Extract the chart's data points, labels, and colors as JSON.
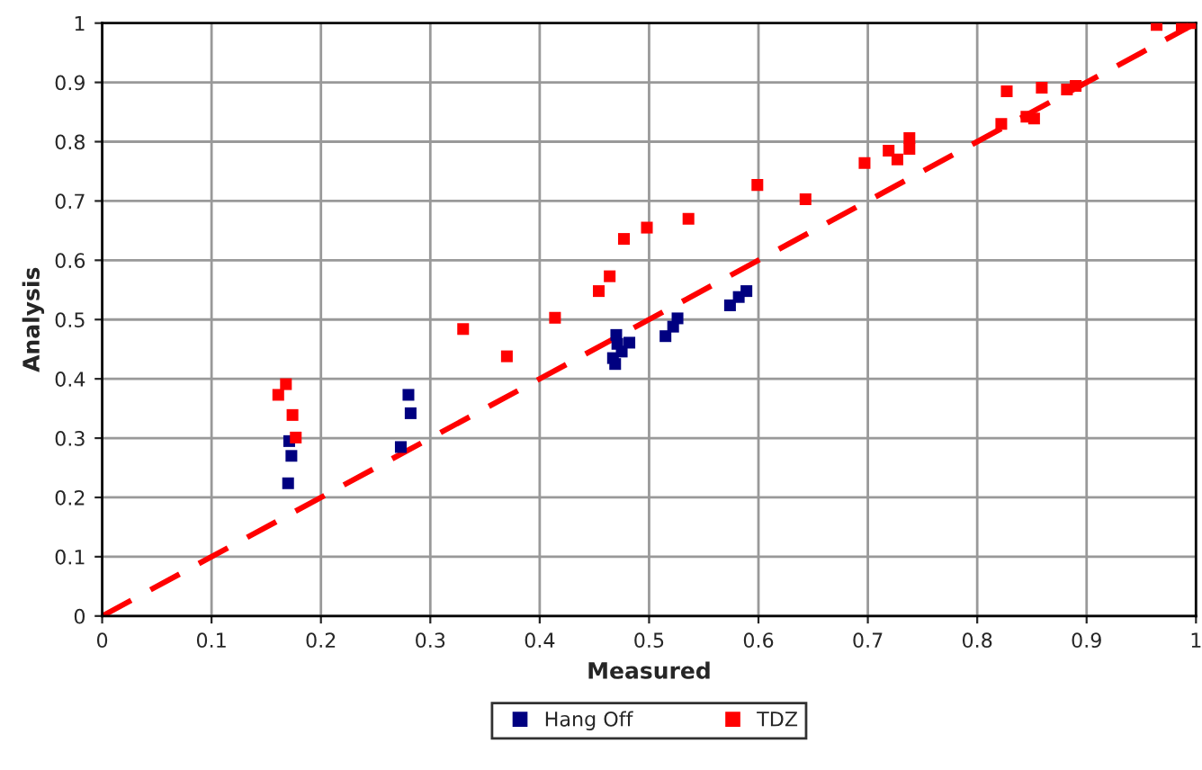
{
  "chart_data": {
    "type": "scatter",
    "xlabel": "Measured",
    "ylabel": "Analysis",
    "xlim": [
      0,
      1
    ],
    "ylim": [
      0,
      1
    ],
    "xticks": [
      0,
      0.1,
      0.2,
      0.3,
      0.4,
      0.5,
      0.6,
      0.7,
      0.8,
      0.9,
      1
    ],
    "yticks": [
      0,
      0.1,
      0.2,
      0.3,
      0.4,
      0.5,
      0.6,
      0.7,
      0.8,
      0.9,
      1
    ],
    "grid": true,
    "legend": "bottom",
    "marker": "square",
    "series": [
      {
        "name": "Hang Off",
        "color": "#000080",
        "x": [
          0.17,
          0.173,
          0.171,
          0.273,
          0.28,
          0.282,
          0.47,
          0.471,
          0.475,
          0.467,
          0.469,
          0.482,
          0.515,
          0.522,
          0.526,
          0.574,
          0.582,
          0.589
        ],
        "values": [
          0.224,
          0.27,
          0.295,
          0.285,
          0.373,
          0.342,
          0.474,
          0.459,
          0.446,
          0.435,
          0.425,
          0.461,
          0.472,
          0.488,
          0.502,
          0.524,
          0.538,
          0.548
        ]
      },
      {
        "name": "TDZ",
        "color": "#ff0000",
        "x": [
          0.161,
          0.168,
          0.174,
          0.177,
          0.33,
          0.37,
          0.414,
          0.454,
          0.464,
          0.477,
          0.498,
          0.536,
          0.599,
          0.643,
          0.697,
          0.719,
          0.727,
          0.738,
          0.738,
          0.822,
          0.827,
          0.845,
          0.852,
          0.859,
          0.882,
          0.89,
          0.964,
          0.987,
          0.997
        ],
        "values": [
          0.373,
          0.391,
          0.339,
          0.301,
          0.484,
          0.438,
          0.503,
          0.548,
          0.573,
          0.636,
          0.655,
          0.67,
          0.727,
          0.703,
          0.764,
          0.785,
          0.77,
          0.788,
          0.806,
          0.83,
          0.885,
          0.842,
          0.839,
          0.891,
          0.888,
          0.894,
          0.997,
          0.997,
          1.0
        ]
      },
      {
        "type": "line",
        "color": "#ff0000",
        "line_style": "dashed",
        "marker": "none",
        "x": [
          0,
          1
        ],
        "values": [
          0,
          1
        ]
      }
    ]
  }
}
